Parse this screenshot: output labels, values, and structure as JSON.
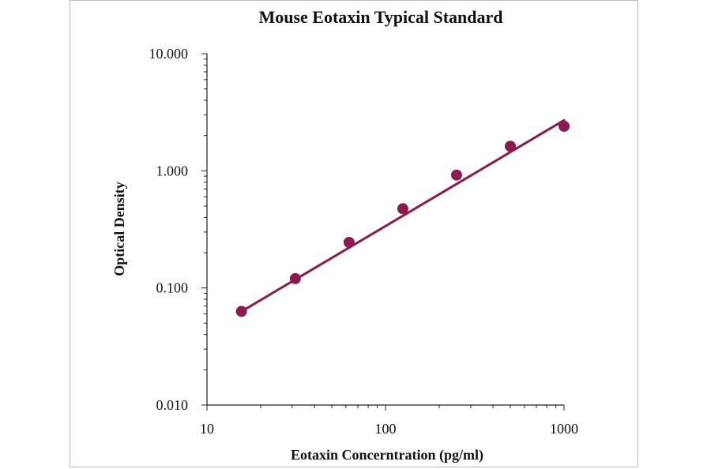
{
  "chart_data": {
    "type": "scatter",
    "title": "Mouse Eotaxin Typical Standard",
    "xlabel": "Eotaxin Concerntration (pg/ml)",
    "ylabel": "Optical Density",
    "xscale": "log",
    "yscale": "log",
    "xlim": [
      10,
      1000
    ],
    "ylim": [
      0.01,
      10
    ],
    "x_ticks": [
      "10",
      "100",
      "1000"
    ],
    "y_ticks": [
      "0.010",
      "0.100",
      "1.000",
      "10.000"
    ],
    "grid": false,
    "legend": "none",
    "series": [
      {
        "kind": "points",
        "x": [
          15.6,
          31.25,
          62.5,
          125,
          250,
          500,
          1000
        ],
        "y": [
          0.063,
          0.12,
          0.245,
          0.475,
          0.92,
          1.62,
          2.4
        ]
      },
      {
        "kind": "trendline",
        "x": [
          15.6,
          1000
        ],
        "y": [
          0.063,
          2.7
        ]
      }
    ],
    "colors": {
      "series": "#8b1a4e",
      "axis": "#222222"
    }
  }
}
